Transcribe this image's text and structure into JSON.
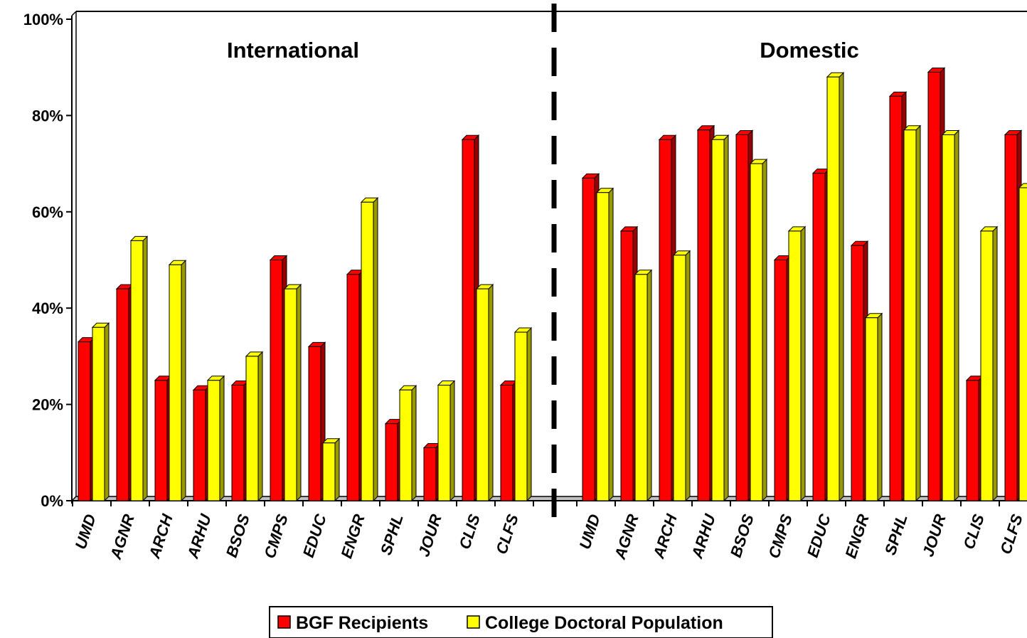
{
  "chart_data": {
    "type": "bar",
    "title": "",
    "xlabel": "",
    "ylabel": "",
    "ylim": [
      0,
      100
    ],
    "y_ticks": [
      "0%",
      "20%",
      "40%",
      "60%",
      "80%",
      "100%"
    ],
    "groups": [
      {
        "label": "International",
        "categories": [
          "UMD",
          "AGNR",
          "ARCH",
          "ARHU",
          "BSOS",
          "CMPS",
          "EDUC",
          "ENGR",
          "SPHL",
          "JOUR",
          "CLIS",
          "CLFS"
        ],
        "series": [
          {
            "name": "BGF Recipients",
            "values": [
              33,
              44,
              25,
              23,
              24,
              50,
              32,
              47,
              16,
              11,
              75,
              24
            ]
          },
          {
            "name": "College Doctoral Population",
            "values": [
              36,
              54,
              49,
              25,
              30,
              44,
              12,
              62,
              23,
              24,
              44,
              35
            ]
          }
        ]
      },
      {
        "label": "Domestic",
        "categories": [
          "UMD",
          "AGNR",
          "ARCH",
          "ARHU",
          "BSOS",
          "CMPS",
          "EDUC",
          "ENGR",
          "SPHL",
          "JOUR",
          "CLIS",
          "CLFS"
        ],
        "series": [
          {
            "name": "BGF Recipients",
            "values": [
              67,
              56,
              75,
              77,
              76,
              50,
              68,
              53,
              84,
              89,
              25,
              76
            ]
          },
          {
            "name": "College Doctoral Population",
            "values": [
              64,
              47,
              51,
              75,
              70,
              56,
              88,
              38,
              77,
              76,
              56,
              65
            ]
          }
        ]
      }
    ],
    "legend": {
      "position": "bottom",
      "items": [
        "BGF Recipients",
        "College Doctoral Population"
      ]
    },
    "colors": {
      "bgf": "#ff0000",
      "bgf_side": "#990000",
      "college": "#ffff00",
      "college_side": "#999900",
      "grid": "#000000"
    },
    "grid": false
  }
}
